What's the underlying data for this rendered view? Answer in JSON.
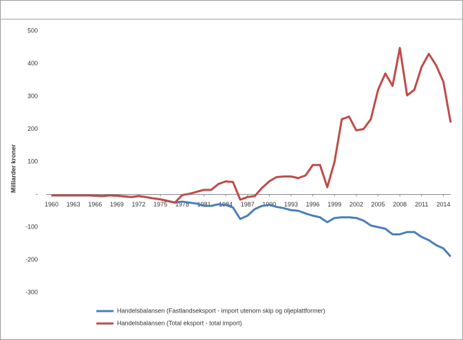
{
  "chart_data": {
    "type": "line",
    "y_label": "Milliarder kroner",
    "x": [
      1960,
      1961,
      1962,
      1963,
      1964,
      1965,
      1966,
      1967,
      1968,
      1969,
      1970,
      1971,
      1972,
      1973,
      1974,
      1975,
      1976,
      1977,
      1978,
      1979,
      1980,
      1981,
      1982,
      1983,
      1984,
      1985,
      1986,
      1987,
      1988,
      1989,
      1990,
      1991,
      1992,
      1993,
      1994,
      1995,
      1996,
      1997,
      1998,
      1999,
      2000,
      2001,
      2002,
      2003,
      2004,
      2005,
      2006,
      2007,
      2008,
      2009,
      2010,
      2011,
      2012,
      2013,
      2014,
      2015
    ],
    "series": [
      {
        "name": "Handelsbalansen (Fastlandseksport - import utenom skip og oljeplattformer)",
        "color": "#4a7ebb",
        "values": [
          -3,
          -3,
          -3,
          -3,
          -3,
          -3,
          -4,
          -5,
          -3,
          -4,
          -6,
          -8,
          -5,
          -8,
          -12,
          -15,
          -20,
          -25,
          -22,
          -25,
          -28,
          -35,
          -35,
          -30,
          -32,
          -40,
          -75,
          -65,
          -45,
          -35,
          -32,
          -38,
          -42,
          -48,
          -50,
          -58,
          -65,
          -70,
          -85,
          -72,
          -70,
          -70,
          -72,
          -80,
          -95,
          -100,
          -105,
          -122,
          -122,
          -115,
          -115,
          -130,
          -140,
          -155,
          -165,
          -190
        ]
      },
      {
        "name": "Handelsbalansen (Total eksport - total import)",
        "color": "#be4b48",
        "values": [
          -3,
          -3,
          -3,
          -3,
          -3,
          -3,
          -4,
          -5,
          -3,
          -4,
          -6,
          -8,
          -5,
          -8,
          -12,
          -15,
          -20,
          -25,
          -2,
          2,
          8,
          14,
          14,
          32,
          40,
          38,
          -16,
          -8,
          -5,
          20,
          40,
          53,
          55,
          55,
          50,
          58,
          90,
          90,
          22,
          100,
          230,
          238,
          196,
          200,
          230,
          320,
          370,
          332,
          448,
          303,
          320,
          390,
          430,
          395,
          345,
          220
        ]
      }
    ],
    "xlim": [
      1960,
      2015
    ],
    "xticks": [
      1960,
      1963,
      1966,
      1969,
      1972,
      1975,
      1978,
      1981,
      1984,
      1987,
      1990,
      1993,
      1996,
      1999,
      2002,
      2005,
      2008,
      2011,
      2014
    ],
    "ylim": [
      -300,
      500
    ],
    "yticks": [
      -300,
      -200,
      -100,
      {
        "value": 0,
        "label": "-"
      },
      100,
      200,
      300,
      400,
      500
    ]
  }
}
